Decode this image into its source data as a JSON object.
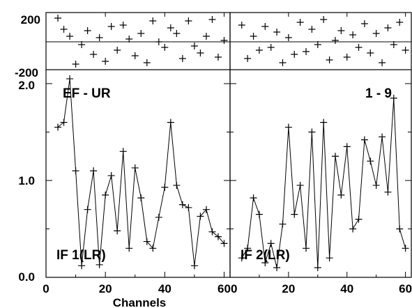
{
  "chart_data": {
    "type": "line",
    "title": "",
    "baseline_label": "EF - UR",
    "source_label": "1 - 9",
    "xlabel": "Channels",
    "x_ticks": [
      0,
      20,
      40,
      60
    ],
    "amplitude_ylim": [
      0.0,
      2.0
    ],
    "amplitude_ticks": [
      "0.0",
      "1.0",
      "2.0"
    ],
    "phase_ylim": [
      -200,
      200
    ],
    "phase_ticks": [
      "200",
      "-200"
    ],
    "grid": false,
    "panels": [
      {
        "if_label": "IF 1(LR)",
        "xlim": [
          0,
          62
        ],
        "amplitude": {
          "x": [
            4,
            6,
            8,
            10,
            12,
            14,
            16,
            18,
            20,
            22,
            24,
            26,
            28,
            30,
            32,
            34,
            36,
            38,
            40,
            42,
            44,
            46,
            48,
            50,
            52,
            54,
            56,
            58,
            60
          ],
          "y": [
            1.55,
            1.6,
            2.05,
            1.1,
            0.12,
            0.7,
            1.1,
            0.13,
            0.85,
            1.05,
            0.48,
            1.3,
            0.3,
            1.13,
            0.82,
            0.37,
            0.3,
            0.62,
            0.93,
            1.6,
            0.95,
            0.75,
            0.72,
            0.12,
            0.63,
            0.7,
            0.47,
            0.42,
            0.35
          ]
        },
        "phase": {
          "x": [
            4,
            6,
            8,
            10,
            12,
            14,
            16,
            18,
            20,
            22,
            24,
            26,
            28,
            30,
            32,
            34,
            36,
            38,
            40,
            42,
            44,
            46,
            48,
            50,
            52,
            54,
            56,
            58,
            60
          ],
          "y": [
            170,
            90,
            40,
            -160,
            -20,
            80,
            -90,
            30,
            -140,
            110,
            -60,
            120,
            20,
            -100,
            60,
            -150,
            150,
            0,
            -40,
            100,
            60,
            -120,
            150,
            -30,
            -80,
            40,
            160,
            -110,
            10
          ]
        }
      },
      {
        "if_label": "IF 2(LR)",
        "xlim": [
          0,
          62
        ],
        "amplitude": {
          "x": [
            4,
            6,
            8,
            10,
            12,
            14,
            16,
            18,
            20,
            22,
            24,
            26,
            28,
            30,
            32,
            34,
            36,
            38,
            40,
            42,
            44,
            46,
            48,
            50,
            52,
            54,
            56,
            58,
            60
          ],
          "y": [
            0.2,
            0.3,
            0.82,
            0.65,
            0.15,
            0.35,
            0.1,
            0.55,
            1.55,
            0.65,
            0.95,
            0.3,
            1.5,
            0.1,
            1.6,
            0.2,
            1.25,
            0.85,
            1.35,
            0.5,
            0.6,
            1.42,
            1.2,
            0.95,
            1.45,
            0.88,
            1.85,
            0.5,
            0.3
          ]
        },
        "phase": {
          "x": [
            4,
            6,
            8,
            10,
            12,
            14,
            16,
            18,
            20,
            22,
            24,
            26,
            28,
            30,
            32,
            34,
            36,
            38,
            40,
            42,
            44,
            46,
            48,
            50,
            52,
            54,
            56,
            58,
            60
          ],
          "y": [
            120,
            -120,
            40,
            -60,
            110,
            -40,
            70,
            -150,
            30,
            -90,
            140,
            -70,
            90,
            -20,
            160,
            -130,
            10,
            80,
            -110,
            50,
            -40,
            130,
            -80,
            60,
            -150,
            100,
            -20,
            140,
            -60
          ]
        }
      }
    ]
  }
}
